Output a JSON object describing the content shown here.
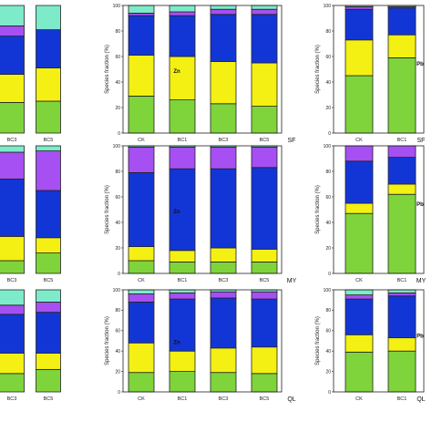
{
  "colors": [
    "#7fd43b",
    "#f4f013",
    "#1236d6",
    "#a64ff2",
    "#7debc9"
  ],
  "y_axis_label": "Species fraction (%)",
  "y_ticks": [
    "0",
    "20",
    "40",
    "60",
    "80",
    "100"
  ],
  "chart_data": [
    {
      "type": "bar",
      "panel": "left-SF",
      "categories": [
        "BC3",
        "BC5"
      ],
      "metal": "",
      "site": "",
      "series": [
        {
          "values": [
            24,
            25
          ]
        },
        {
          "values": [
            22,
            26
          ]
        },
        {
          "values": [
            30,
            30
          ]
        },
        {
          "values": [
            8,
            0
          ]
        },
        {
          "values": [
            16,
            19
          ]
        }
      ]
    },
    {
      "type": "bar",
      "panel": "middle-SF",
      "categories": [
        "CK",
        "BC1",
        "BC3",
        "BC5"
      ],
      "metal": "Zn",
      "site": "SF",
      "ylim": [
        0,
        100
      ],
      "series": [
        {
          "values": [
            29,
            26,
            23,
            21
          ]
        },
        {
          "values": [
            32,
            34,
            33,
            34
          ]
        },
        {
          "values": [
            31,
            32,
            37,
            38
          ]
        },
        {
          "values": [
            2,
            3,
            4,
            4
          ]
        },
        {
          "values": [
            6,
            5,
            3,
            3
          ]
        }
      ]
    },
    {
      "type": "bar",
      "panel": "right-SF",
      "categories": [
        "CK",
        "BC1"
      ],
      "metal": "Pb",
      "site": "SF",
      "ylim": [
        0,
        100
      ],
      "series": [
        {
          "values": [
            45,
            59
          ]
        },
        {
          "values": [
            28,
            18
          ]
        },
        {
          "values": [
            24,
            21
          ]
        },
        {
          "values": [
            2,
            1
          ]
        },
        {
          "values": [
            1,
            1
          ]
        }
      ]
    },
    {
      "type": "bar",
      "panel": "left-MY",
      "categories": [
        "BC3",
        "BC5"
      ],
      "metal": "",
      "site": "",
      "series": [
        {
          "values": [
            10,
            16
          ]
        },
        {
          "values": [
            19,
            12
          ]
        },
        {
          "values": [
            45,
            37
          ]
        },
        {
          "values": [
            21,
            31
          ]
        },
        {
          "values": [
            5,
            4
          ]
        }
      ]
    },
    {
      "type": "bar",
      "panel": "middle-MY",
      "categories": [
        "CK",
        "BC1",
        "BC3",
        "BC5"
      ],
      "metal": "Zn",
      "site": "MY",
      "ylim": [
        0,
        100
      ],
      "series": [
        {
          "values": [
            10,
            9,
            9,
            9
          ]
        },
        {
          "values": [
            11,
            9,
            11,
            10
          ]
        },
        {
          "values": [
            58,
            64,
            62,
            64
          ]
        },
        {
          "values": [
            20,
            17,
            17,
            16
          ]
        },
        {
          "values": [
            1,
            1,
            1,
            1
          ]
        }
      ]
    },
    {
      "type": "bar",
      "panel": "right-MY",
      "categories": [
        "CK",
        "BC1"
      ],
      "metal": "Pb",
      "site": "MY",
      "ylim": [
        0,
        100
      ],
      "series": [
        {
          "values": [
            47,
            62
          ]
        },
        {
          "values": [
            8,
            8
          ]
        },
        {
          "values": [
            33,
            21
          ]
        },
        {
          "values": [
            12,
            9
          ]
        },
        {
          "values": [
            0,
            0
          ]
        }
      ]
    },
    {
      "type": "bar",
      "panel": "left-QL",
      "categories": [
        "BC3",
        "BC5"
      ],
      "metal": "",
      "site": "",
      "series": [
        {
          "values": [
            18,
            22
          ]
        },
        {
          "values": [
            20,
            16
          ]
        },
        {
          "values": [
            38,
            40
          ]
        },
        {
          "values": [
            9,
            10
          ]
        },
        {
          "values": [
            15,
            12
          ]
        }
      ]
    },
    {
      "type": "bar",
      "panel": "middle-QL",
      "categories": [
        "CK",
        "BC1",
        "BC3",
        "BC5"
      ],
      "metal": "Zn",
      "site": "QL",
      "ylim": [
        0,
        100
      ],
      "series": [
        {
          "values": [
            19,
            20,
            19,
            18
          ]
        },
        {
          "values": [
            29,
            20,
            24,
            26
          ]
        },
        {
          "values": [
            40,
            51,
            49,
            47
          ]
        },
        {
          "values": [
            8,
            6,
            6,
            7
          ]
        },
        {
          "values": [
            4,
            3,
            2,
            2
          ]
        }
      ]
    },
    {
      "type": "bar",
      "panel": "right-QL",
      "categories": [
        "CK",
        "BC1"
      ],
      "metal": "Pb",
      "site": "QL",
      "ylim": [
        0,
        100
      ],
      "series": [
        {
          "values": [
            39,
            40
          ]
        },
        {
          "values": [
            17,
            13
          ]
        },
        {
          "values": [
            35,
            41
          ]
        },
        {
          "values": [
            4,
            3
          ]
        },
        {
          "values": [
            5,
            3
          ]
        }
      ]
    }
  ]
}
